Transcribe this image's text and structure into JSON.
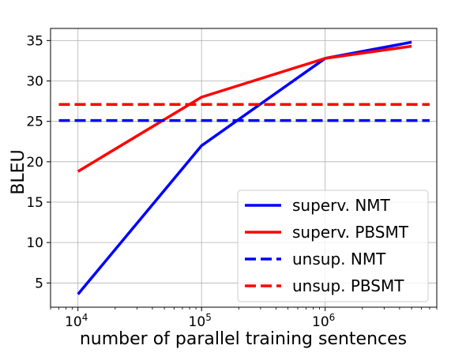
{
  "chart_data": {
    "type": "line",
    "title": "",
    "xlabel": "number of parallel training sentences",
    "ylabel": "BLEU",
    "x_scale": "log",
    "xlim": [
      6000,
      8000000
    ],
    "ylim": [
      2,
      36.5
    ],
    "grid": true,
    "legend_position": "lower-right",
    "x_ticks": [
      {
        "value": 10000,
        "base": "10",
        "exp": "4"
      },
      {
        "value": 100000,
        "base": "10",
        "exp": "5"
      },
      {
        "value": 1000000,
        "base": "10",
        "exp": "6"
      }
    ],
    "y_ticks": [
      5,
      10,
      15,
      20,
      25,
      30,
      35
    ],
    "series": [
      {
        "name": "superv. NMT",
        "color": "#0000ff",
        "style": "solid",
        "points": [
          [
            10000,
            3.6
          ],
          [
            100000,
            22.0
          ],
          [
            1000000,
            32.8
          ],
          [
            5000000,
            34.8
          ]
        ]
      },
      {
        "name": "superv. PBSMT",
        "color": "#ff0000",
        "style": "solid",
        "points": [
          [
            10000,
            18.8
          ],
          [
            100000,
            28.0
          ],
          [
            1000000,
            32.8
          ],
          [
            5000000,
            34.3
          ]
        ]
      },
      {
        "name": "unsup. NMT",
        "color": "#0000ff",
        "style": "dashed",
        "points": [
          [
            7000,
            25.1
          ],
          [
            7000000,
            25.1
          ]
        ]
      },
      {
        "name": "unsup. PBSMT",
        "color": "#ff0000",
        "style": "dashed",
        "points": [
          [
            7000,
            27.1
          ],
          [
            7000000,
            27.1
          ]
        ]
      }
    ]
  }
}
